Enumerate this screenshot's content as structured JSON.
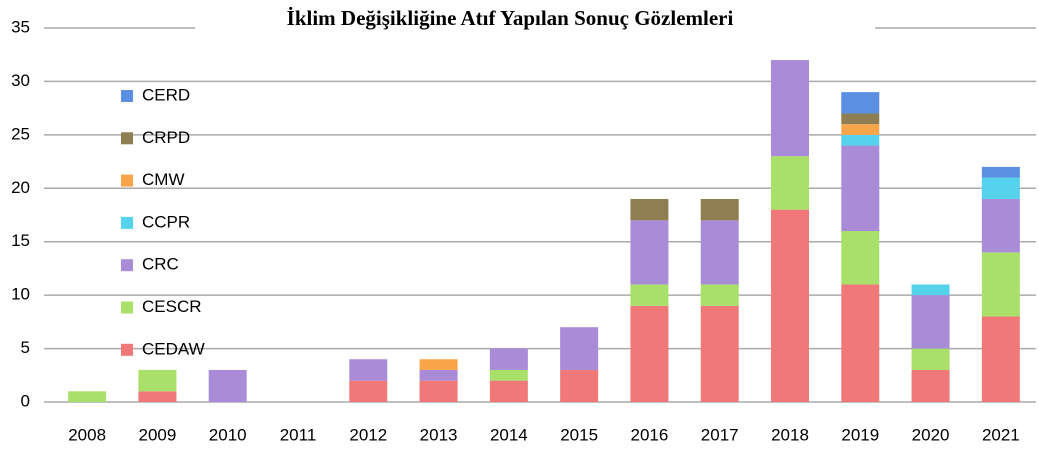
{
  "chart_data": {
    "type": "stacked_bar",
    "title": "İklim Değişikliğine Atıf Yapılan Sonuç Gözlemleri",
    "categories": [
      "2008",
      "2009",
      "2010",
      "2011",
      "2012",
      "2013",
      "2014",
      "2015",
      "2016",
      "2017",
      "2018",
      "2019",
      "2020",
      "2021"
    ],
    "series": [
      {
        "name": "CEDAW",
        "color": "#f07878",
        "values": [
          0,
          1,
          0,
          0,
          2,
          2,
          2,
          3,
          9,
          9,
          18,
          11,
          3,
          8
        ]
      },
      {
        "name": "CESCR",
        "color": "#a8e06a",
        "values": [
          1,
          2,
          0,
          0,
          0,
          0,
          1,
          0,
          2,
          2,
          5,
          5,
          2,
          6
        ]
      },
      {
        "name": "CRC",
        "color": "#a98bd8",
        "values": [
          0,
          0,
          3,
          0,
          2,
          1,
          2,
          4,
          6,
          6,
          9,
          8,
          5,
          5
        ]
      },
      {
        "name": "CCPR",
        "color": "#55d3ec",
        "values": [
          0,
          0,
          0,
          0,
          0,
          0,
          0,
          0,
          0,
          0,
          0,
          1,
          1,
          2
        ]
      },
      {
        "name": "CMW",
        "color": "#f8a54a",
        "values": [
          0,
          0,
          0,
          0,
          0,
          1,
          0,
          0,
          0,
          0,
          0,
          1,
          0,
          0
        ]
      },
      {
        "name": "CRPD",
        "color": "#8f7e52",
        "values": [
          0,
          0,
          0,
          0,
          0,
          0,
          0,
          0,
          2,
          2,
          0,
          1,
          0,
          0
        ]
      },
      {
        "name": "CERD",
        "color": "#5b8fe2",
        "values": [
          0,
          0,
          0,
          0,
          0,
          0,
          0,
          0,
          0,
          0,
          0,
          2,
          0,
          1
        ]
      }
    ],
    "ylim": [
      0,
      35
    ],
    "yticks": [
      0,
      5,
      10,
      15,
      20,
      25,
      30,
      35
    ],
    "grid": true,
    "legend": "left"
  }
}
